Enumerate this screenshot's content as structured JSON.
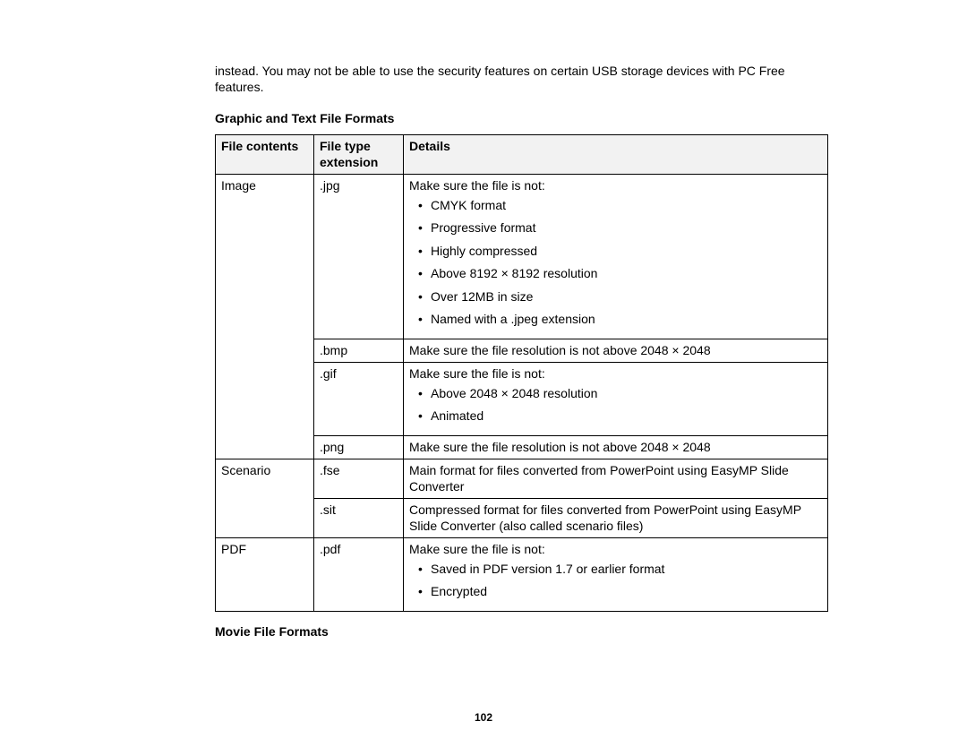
{
  "intro": "instead. You may not be able to use the security features on certain USB storage devices with PC Free features.",
  "heading1": "Graphic and Text File Formats",
  "heading2": "Movie File Formats",
  "pageNumber": "102",
  "table": {
    "headers": {
      "col1": "File contents",
      "col2": "File type extension",
      "col3": "Details"
    },
    "rows": {
      "image": {
        "contents": "Image",
        "jpg": {
          "ext": ".jpg",
          "lead": "Make sure the file is not:",
          "items": [
            "CMYK format",
            "Progressive format",
            "Highly compressed",
            "Above 8192 × 8192 resolution",
            "Over 12MB in size",
            "Named with a .jpeg extension"
          ]
        },
        "bmp": {
          "ext": ".bmp",
          "details": "Make sure the file resolution is not above 2048 × 2048"
        },
        "gif": {
          "ext": ".gif",
          "lead": "Make sure the file is not:",
          "items": [
            "Above 2048 × 2048 resolution",
            "Animated"
          ]
        },
        "png": {
          "ext": ".png",
          "details": "Make sure the file resolution is not above 2048 × 2048"
        }
      },
      "scenario": {
        "contents": "Scenario",
        "fse": {
          "ext": ".fse",
          "details": "Main format for files converted from PowerPoint using EasyMP Slide Converter"
        },
        "sit": {
          "ext": ".sit",
          "details": "Compressed format for files converted from PowerPoint using EasyMP Slide Converter (also called scenario files)"
        }
      },
      "pdf": {
        "contents": "PDF",
        "pdf": {
          "ext": ".pdf",
          "lead": "Make sure the file is not:",
          "items": [
            "Saved in PDF version 1.7 or earlier format",
            "Encrypted"
          ]
        }
      }
    }
  }
}
